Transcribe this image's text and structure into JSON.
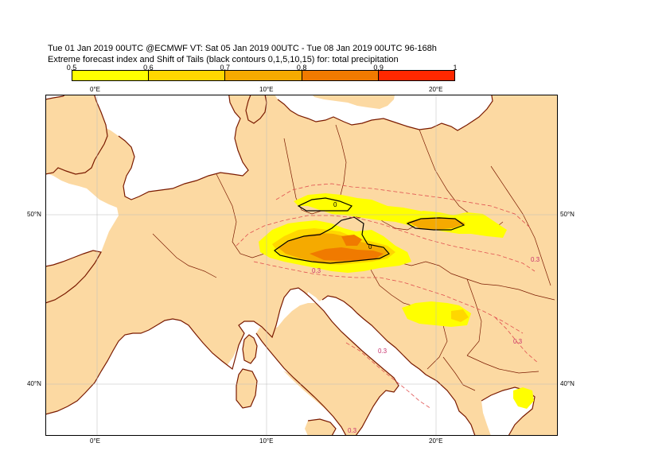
{
  "header": {
    "title_line1": "Tue 01 Jan 2019 00UTC @ECMWF VT: Sat 05 Jan 2019 00UTC - Tue 08 Jan 2019 00UTC  96-168h",
    "title_line2": "Extreme forecast index and Shift of Tails (black contours 0,1,5,10,15) for: total precipitation"
  },
  "colorbar": {
    "ticks": [
      "0.5",
      "0.6",
      "0.7",
      "0.8",
      "0.9",
      "1"
    ],
    "colors": [
      "#ffff00",
      "#ffd700",
      "#f5aa00",
      "#f07a00",
      "#ff2800"
    ]
  },
  "map": {
    "land_color": "#fcd9a2",
    "sea_color": "#ffffff",
    "coast_color": "#7a1a00",
    "top_lon_labels": [
      "0°E",
      "10°E",
      "20°E"
    ],
    "bottom_lon_labels": [
      "0°E",
      "10°E",
      "20°E"
    ],
    "left_lat_labels": [
      "50°N",
      "40°N"
    ],
    "right_lat_labels": [
      "50°N",
      "40°N"
    ],
    "contour_labels": [
      "0.3",
      "0.3",
      "0.3",
      "0.3",
      "0.3"
    ],
    "sot_labels": [
      "0",
      "0"
    ]
  }
}
